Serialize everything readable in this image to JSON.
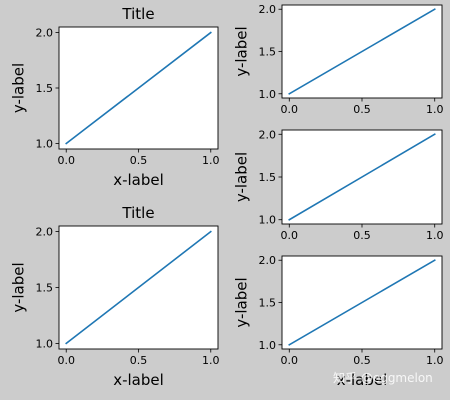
{
  "figure": {
    "background": "#cccccc",
    "axes_face": "#ffffff",
    "line_color": "#1f77b4",
    "watermark": "知乎 @eggmelon"
  },
  "chart_data": [
    {
      "id": "ax-top-left",
      "type": "line",
      "title": "Title",
      "xlabel": "x-label",
      "ylabel": "y-label",
      "xlim": [
        -0.05,
        1.05
      ],
      "ylim": [
        0.95,
        2.05
      ],
      "xticks": [
        "0.0",
        "0.5",
        "1.0"
      ],
      "yticks": [
        "1.0",
        "1.5",
        "2.0"
      ],
      "grid": false,
      "series": [
        {
          "x": [
            0,
            1
          ],
          "y": [
            1,
            2
          ]
        }
      ]
    },
    {
      "id": "ax-bottom-left",
      "type": "line",
      "title": "Title",
      "xlabel": "x-label",
      "ylabel": "y-label",
      "xlim": [
        -0.05,
        1.05
      ],
      "ylim": [
        0.95,
        2.05
      ],
      "xticks": [
        "0.0",
        "0.5",
        "1.0"
      ],
      "yticks": [
        "1.0",
        "1.5",
        "2.0"
      ],
      "grid": false,
      "series": [
        {
          "x": [
            0,
            1
          ],
          "y": [
            1,
            2
          ]
        }
      ]
    },
    {
      "id": "ax-right-1",
      "type": "line",
      "title": "",
      "xlabel": "",
      "ylabel": "y-label",
      "xlim": [
        -0.05,
        1.05
      ],
      "ylim": [
        0.95,
        2.05
      ],
      "xticks": [
        "0.0",
        "0.5",
        "1.0"
      ],
      "yticks": [
        "1.0",
        "1.5",
        "2.0"
      ],
      "grid": false,
      "series": [
        {
          "x": [
            0,
            1
          ],
          "y": [
            1,
            2
          ]
        }
      ]
    },
    {
      "id": "ax-right-2",
      "type": "line",
      "title": "",
      "xlabel": "",
      "ylabel": "y-label",
      "xlim": [
        -0.05,
        1.05
      ],
      "ylim": [
        0.95,
        2.05
      ],
      "xticks": [
        "0.0",
        "0.5",
        "1.0"
      ],
      "yticks": [
        "1.0",
        "1.5",
        "2.0"
      ],
      "grid": false,
      "series": [
        {
          "x": [
            0,
            1
          ],
          "y": [
            1,
            2
          ]
        }
      ]
    },
    {
      "id": "ax-right-3",
      "type": "line",
      "title": "",
      "xlabel": "x-label",
      "ylabel": "y-label",
      "xlim": [
        -0.05,
        1.05
      ],
      "ylim": [
        0.95,
        2.05
      ],
      "xticks": [
        "0.0",
        "0.5",
        "1.0"
      ],
      "yticks": [
        "1.0",
        "1.5",
        "2.0"
      ],
      "grid": false,
      "series": [
        {
          "x": [
            0,
            1
          ],
          "y": [
            1,
            2
          ]
        }
      ]
    }
  ]
}
